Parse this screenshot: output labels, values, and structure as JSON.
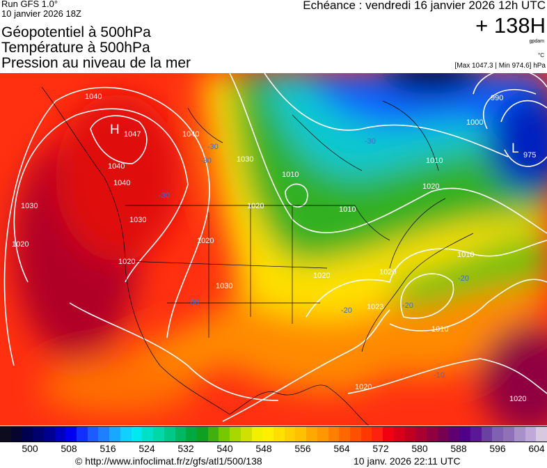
{
  "header": {
    "run": "Run GFS 1.0°",
    "run_date": "10 janvier 2026 18Z",
    "titles": [
      "Géopotentiel à 500hPa",
      "Température à 500hPa",
      "Pression au niveau de la mer"
    ],
    "valid_time": "Echéance : vendredi 16 janvier 2026 12h UTC",
    "lead": "+ 138H",
    "unit_geo": "gpdam",
    "unit_temp": "°C",
    "pressure_range": "[Max 1047.3 | Min 974.6] hPa"
  },
  "map": {
    "high": {
      "symbol": "H",
      "value": "1047"
    },
    "low": {
      "symbol": "L",
      "value": "975"
    },
    "isobar_labels": [
      "1040",
      "1040",
      "1040",
      "1030",
      "1030",
      "1020",
      "1020",
      "1030",
      "1040",
      "1020",
      "1010",
      "1000",
      "990",
      "1010",
      "1020",
      "1010",
      "1020",
      "1020",
      "1023",
      "1010",
      "1010",
      "1020",
      "1020",
      "1020",
      "1030"
    ],
    "temp_labels": [
      "-30",
      "-30",
      "-30",
      "-30",
      "-20",
      "-20",
      "-10",
      "-30",
      "-20"
    ]
  },
  "colorbar": {
    "colors": [
      "#0c0c1e",
      "#05052e",
      "#000050",
      "#00006e",
      "#000090",
      "#0000c0",
      "#0000f0",
      "#1030ff",
      "#1c5cff",
      "#1e80ff",
      "#18a8ff",
      "#10d0ff",
      "#00e8f0",
      "#00e0c8",
      "#00d8a8",
      "#00c888",
      "#00b860",
      "#00a840",
      "#10a020",
      "#40b010",
      "#78c800",
      "#a8d800",
      "#d0e000",
      "#f0f000",
      "#fff000",
      "#ffe000",
      "#ffd000",
      "#ffc000",
      "#ffa800",
      "#ff9800",
      "#ff8000",
      "#ff6800",
      "#ff5000",
      "#ff3800",
      "#ff2010",
      "#f00010",
      "#d80018",
      "#c00020",
      "#a80030",
      "#900040",
      "#780050",
      "#600070",
      "#500088",
      "#5a1898",
      "#6a40a0",
      "#8060b0",
      "#9070b8",
      "#a890c8",
      "#c0a8d8",
      "#d8c8e0"
    ],
    "ticks": [
      "500",
      "508",
      "516",
      "524",
      "532",
      "540",
      "548",
      "556",
      "564",
      "572",
      "580",
      "588",
      "596",
      "604"
    ]
  },
  "footer": {
    "url": "© http://www.infoclimat.fr/z/gfs/atl1/500/138",
    "generated": "10 janv. 2026 22:11 UTC"
  }
}
